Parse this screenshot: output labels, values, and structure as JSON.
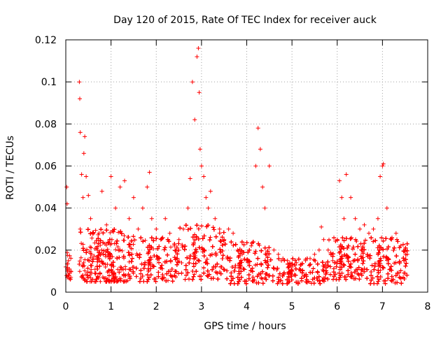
{
  "chart_data": {
    "type": "scatter",
    "title": "Day 120 of 2015, Rate Of TEC Index for receiver auck",
    "xlabel": "GPS time / hours",
    "ylabel": "ROTI / TECUs",
    "xlim": [
      0,
      8
    ],
    "ylim": [
      0,
      0.12
    ],
    "x_ticks": [
      0,
      1,
      2,
      3,
      4,
      5,
      6,
      7,
      8
    ],
    "x_tick_labels": [
      "0",
      "1",
      "2",
      "3",
      "4",
      "5",
      "6",
      "7",
      "8"
    ],
    "y_ticks": [
      0,
      0.02,
      0.04,
      0.06,
      0.08,
      0.1,
      0.12
    ],
    "y_tick_labels": [
      "0",
      "0.02",
      "0.04",
      "0.06",
      "0.08",
      "0.1",
      "0.12"
    ],
    "grid": true,
    "marker": "+",
    "color": "#ff0000",
    "series": [
      {
        "name": "ROTI",
        "x": [
          0.0,
          0.02,
          0.03,
          0.05,
          0.06,
          0.08,
          0.3,
          0.31,
          0.32,
          0.35,
          0.38,
          0.4,
          0.42,
          0.45,
          0.5,
          0.55,
          0.6,
          0.7,
          0.8,
          0.9,
          1.0,
          1.02,
          1.1,
          1.2,
          1.3,
          1.4,
          1.5,
          1.6,
          1.7,
          1.8,
          1.85,
          1.9,
          2.0,
          2.1,
          2.2,
          2.3,
          2.4,
          2.5,
          2.6,
          2.7,
          2.75,
          2.8,
          2.85,
          2.9,
          2.93,
          2.95,
          2.97,
          3.0,
          3.05,
          3.1,
          3.15,
          3.2,
          3.3,
          3.4,
          3.5,
          3.6,
          3.7,
          3.8,
          3.9,
          4.0,
          4.1,
          4.2,
          4.25,
          4.3,
          4.35,
          4.4,
          4.5,
          4.6,
          4.7,
          4.8,
          4.9,
          5.0,
          5.1,
          5.2,
          5.3,
          5.4,
          5.5,
          5.6,
          5.65,
          5.7,
          5.8,
          5.9,
          6.0,
          6.05,
          6.1,
          6.15,
          6.2,
          6.3,
          6.4,
          6.5,
          6.6,
          6.7,
          6.8,
          6.9,
          6.95,
          7.0,
          7.02,
          7.1,
          7.2,
          7.3,
          7.4,
          7.5,
          7.55
        ],
        "y": [
          0.012,
          0.05,
          0.042,
          0.008,
          0.015,
          0.011,
          0.1,
          0.092,
          0.076,
          0.056,
          0.045,
          0.066,
          0.074,
          0.055,
          0.046,
          0.035,
          0.028,
          0.02,
          0.048,
          0.032,
          0.055,
          0.025,
          0.04,
          0.05,
          0.053,
          0.035,
          0.045,
          0.03,
          0.04,
          0.05,
          0.057,
          0.035,
          0.03,
          0.025,
          0.035,
          0.028,
          0.022,
          0.025,
          0.03,
          0.04,
          0.054,
          0.1,
          0.082,
          0.112,
          0.116,
          0.095,
          0.068,
          0.06,
          0.055,
          0.045,
          0.04,
          0.048,
          0.035,
          0.03,
          0.025,
          0.03,
          0.028,
          0.02,
          0.018,
          0.015,
          0.022,
          0.06,
          0.078,
          0.068,
          0.05,
          0.04,
          0.06,
          0.02,
          0.018,
          0.016,
          0.015,
          0.012,
          0.014,
          0.013,
          0.015,
          0.016,
          0.018,
          0.02,
          0.031,
          0.025,
          0.02,
          0.015,
          0.025,
          0.053,
          0.045,
          0.035,
          0.056,
          0.045,
          0.035,
          0.03,
          0.032,
          0.028,
          0.03,
          0.035,
          0.055,
          0.06,
          0.061,
          0.04,
          0.025,
          0.028,
          0.022,
          0.02,
          0.018
        ],
        "density_bands": [
          {
            "x_start": 0.0,
            "x_end": 0.12,
            "y_low": 0.006,
            "y_high": 0.02,
            "per_hour": 180
          },
          {
            "x_start": 0.3,
            "x_end": 1.5,
            "y_low": 0.005,
            "y_high": 0.03,
            "per_hour": 700
          },
          {
            "x_start": 1.5,
            "x_end": 2.5,
            "y_low": 0.005,
            "y_high": 0.026,
            "per_hour": 650
          },
          {
            "x_start": 2.5,
            "x_end": 3.5,
            "y_low": 0.006,
            "y_high": 0.032,
            "per_hour": 650
          },
          {
            "x_start": 3.5,
            "x_end": 4.5,
            "y_low": 0.004,
            "y_high": 0.024,
            "per_hour": 600
          },
          {
            "x_start": 4.5,
            "x_end": 5.8,
            "y_low": 0.004,
            "y_high": 0.016,
            "per_hour": 520
          },
          {
            "x_start": 5.8,
            "x_end": 6.6,
            "y_low": 0.006,
            "y_high": 0.026,
            "per_hour": 600
          },
          {
            "x_start": 6.6,
            "x_end": 7.55,
            "y_low": 0.004,
            "y_high": 0.026,
            "per_hour": 620
          }
        ]
      }
    ]
  }
}
